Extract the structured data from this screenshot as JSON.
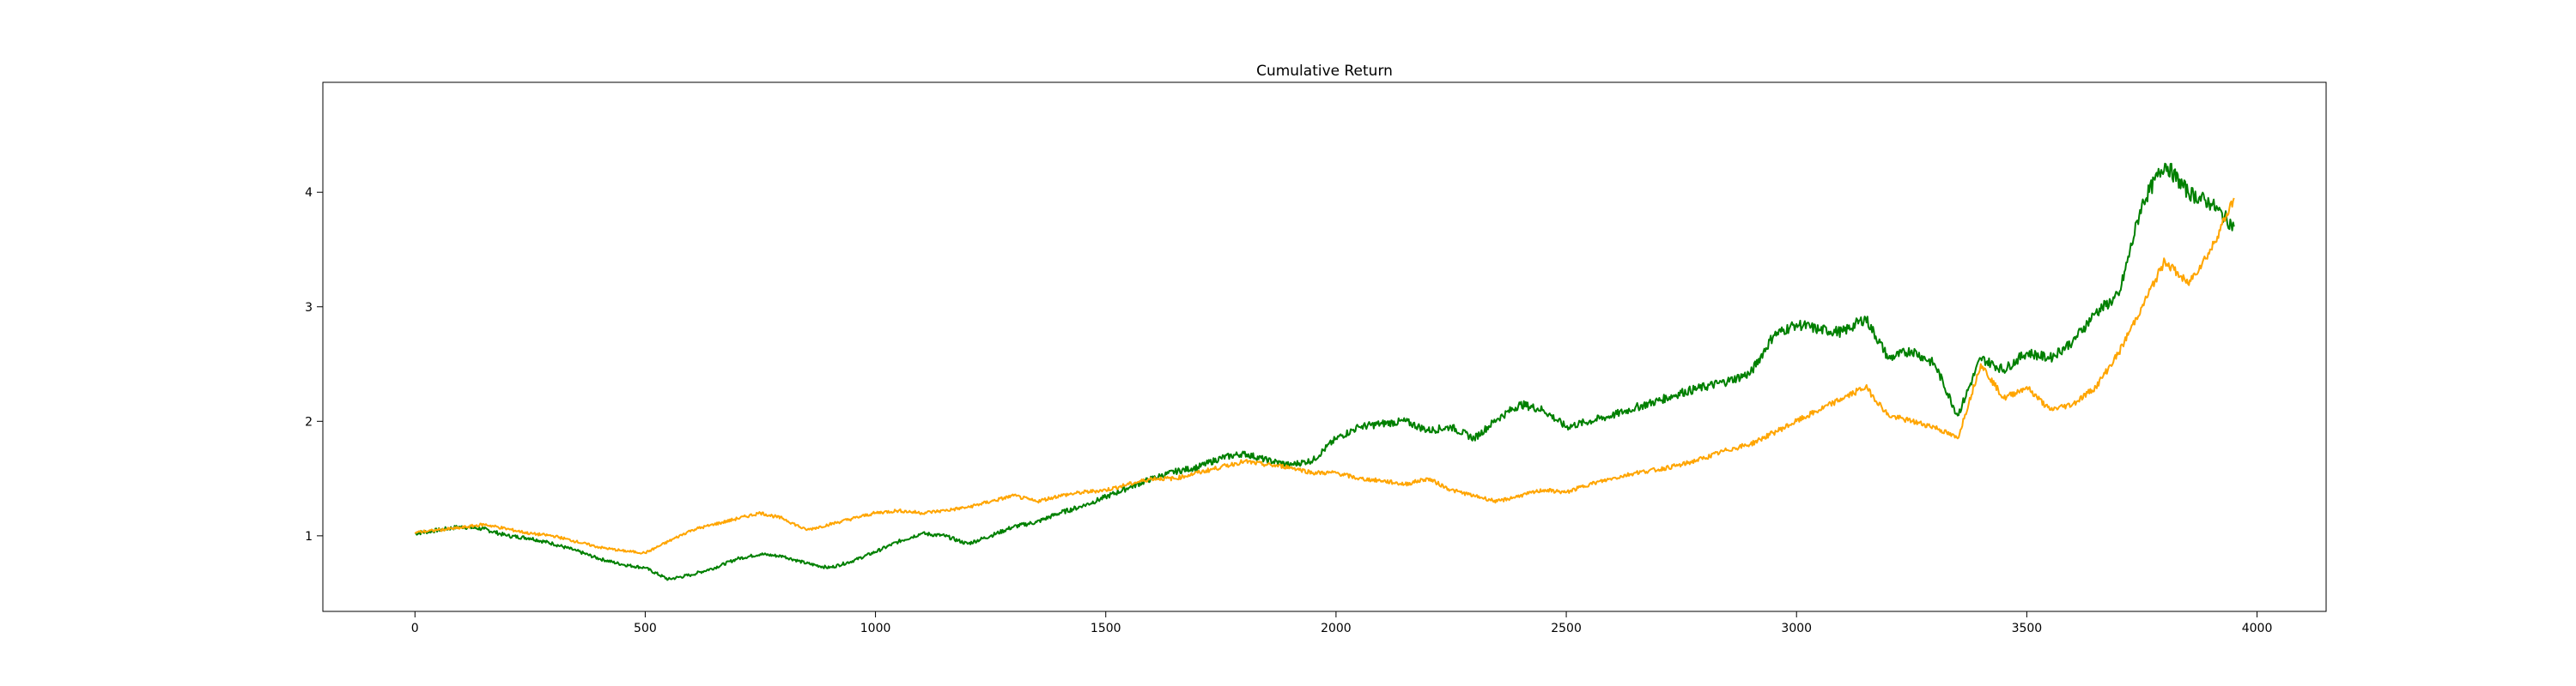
{
  "chart_data": {
    "type": "line",
    "title": "Cumulative Return",
    "xlabel": "",
    "ylabel": "",
    "xlim": [
      -200,
      4150
    ],
    "ylim": [
      0.34,
      4.96
    ],
    "x_ticks": [
      0,
      500,
      1000,
      1500,
      2000,
      2500,
      3000,
      3500,
      4000
    ],
    "y_ticks": [
      1,
      2,
      3,
      4
    ],
    "grid": false,
    "legend": "none",
    "series": [
      {
        "color": "#008000",
        "x": [
          0,
          50,
          100,
          150,
          200,
          250,
          300,
          350,
          400,
          450,
          500,
          550,
          600,
          650,
          700,
          750,
          800,
          850,
          900,
          950,
          1000,
          1050,
          1100,
          1150,
          1200,
          1250,
          1300,
          1350,
          1400,
          1450,
          1500,
          1550,
          1600,
          1650,
          1700,
          1750,
          1800,
          1850,
          1900,
          1950,
          2000,
          2050,
          2100,
          2150,
          2200,
          2250,
          2300,
          2350,
          2400,
          2450,
          2500,
          2550,
          2600,
          2650,
          2700,
          2750,
          2800,
          2850,
          2900,
          2950,
          3000,
          3050,
          3100,
          3150,
          3200,
          3250,
          3300,
          3350,
          3400,
          3450,
          3500,
          3550,
          3600,
          3650,
          3700,
          3750,
          3800,
          3850,
          3900,
          3950
        ],
        "values": [
          1.02,
          1.05,
          1.08,
          1.06,
          1.0,
          0.98,
          0.93,
          0.87,
          0.8,
          0.75,
          0.72,
          0.62,
          0.66,
          0.72,
          0.8,
          0.84,
          0.82,
          0.76,
          0.72,
          0.78,
          0.86,
          0.95,
          1.02,
          1.0,
          0.93,
          1.0,
          1.08,
          1.12,
          1.2,
          1.26,
          1.34,
          1.42,
          1.5,
          1.56,
          1.6,
          1.68,
          1.72,
          1.66,
          1.62,
          1.66,
          1.85,
          1.95,
          1.98,
          2.0,
          1.92,
          1.95,
          1.85,
          2.02,
          2.15,
          2.1,
          1.95,
          2.0,
          2.05,
          2.12,
          2.18,
          2.25,
          2.3,
          2.35,
          2.42,
          2.75,
          2.85,
          2.8,
          2.78,
          2.9,
          2.55,
          2.62,
          2.5,
          2.05,
          2.55,
          2.45,
          2.6,
          2.55,
          2.7,
          2.95,
          3.1,
          3.9,
          4.25,
          4.0,
          3.9,
          3.7
        ]
      },
      {
        "color": "#ffa500",
        "x": [
          0,
          50,
          100,
          150,
          200,
          250,
          300,
          350,
          400,
          450,
          500,
          550,
          600,
          650,
          700,
          750,
          800,
          850,
          900,
          950,
          1000,
          1050,
          1100,
          1150,
          1200,
          1250,
          1300,
          1350,
          1400,
          1450,
          1500,
          1550,
          1600,
          1650,
          1700,
          1750,
          1800,
          1850,
          1900,
          1950,
          2000,
          2050,
          2100,
          2150,
          2200,
          2250,
          2300,
          2350,
          2400,
          2450,
          2500,
          2550,
          2600,
          2650,
          2700,
          2750,
          2800,
          2850,
          2900,
          2950,
          3000,
          3050,
          3100,
          3150,
          3200,
          3250,
          3300,
          3350,
          3400,
          3450,
          3500,
          3550,
          3600,
          3650,
          3700,
          3750,
          3800,
          3850,
          3900,
          3950
        ],
        "values": [
          1.03,
          1.05,
          1.07,
          1.1,
          1.06,
          1.02,
          1.0,
          0.95,
          0.9,
          0.87,
          0.85,
          0.95,
          1.05,
          1.1,
          1.15,
          1.2,
          1.15,
          1.05,
          1.1,
          1.15,
          1.2,
          1.22,
          1.2,
          1.22,
          1.25,
          1.3,
          1.35,
          1.3,
          1.35,
          1.38,
          1.4,
          1.45,
          1.5,
          1.5,
          1.55,
          1.6,
          1.65,
          1.62,
          1.6,
          1.55,
          1.55,
          1.5,
          1.48,
          1.45,
          1.5,
          1.4,
          1.35,
          1.3,
          1.35,
          1.4,
          1.38,
          1.45,
          1.5,
          1.55,
          1.58,
          1.62,
          1.68,
          1.75,
          1.8,
          1.9,
          2.0,
          2.1,
          2.2,
          2.3,
          2.05,
          2.0,
          1.95,
          1.85,
          2.5,
          2.2,
          2.3,
          2.1,
          2.15,
          2.3,
          2.6,
          3.0,
          3.4,
          3.2,
          3.5,
          3.95
        ]
      }
    ]
  }
}
